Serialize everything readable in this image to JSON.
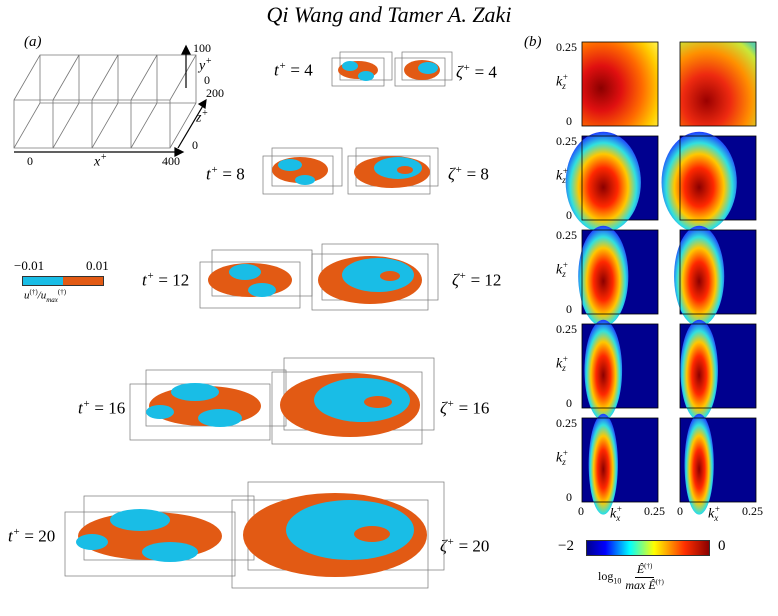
{
  "header": {
    "title": "Qi Wang and Tamer A. Zaki"
  },
  "panel_a": {
    "label": "(a)",
    "axes_box": {
      "x_tick_0": "0",
      "x_tick_400": "400",
      "y_tick_100": "100",
      "y_tick_0": "0",
      "z_tick_200": "200",
      "z_tick_0": "0",
      "x_label": "x",
      "y_label": "y",
      "z_label": "z",
      "sup": "+"
    },
    "colorbar": {
      "min": "−0.01",
      "max": "0.01",
      "neg_color": "#19bde6",
      "pos_color": "#e25a14",
      "label_main": "u",
      "label_sep": "/",
      "label_sub": "max"
    },
    "rows": [
      {
        "t": "4",
        "zeta": "4"
      },
      {
        "t": "8",
        "zeta": "8"
      },
      {
        "t": "12",
        "zeta": "12"
      },
      {
        "t": "16",
        "zeta": "16"
      },
      {
        "t": "20",
        "zeta": "20"
      }
    ],
    "t_symbol": "t",
    "zeta_symbol": "ζ",
    "sup": "+",
    "eq": " = "
  },
  "panel_b": {
    "label": "(b)",
    "ky_label": "k",
    "ky_sub": "z",
    "kx_label": "k",
    "kx_sub": "x",
    "sup": "+",
    "tick_025": "0.25",
    "tick_0": "0",
    "colorbar": {
      "min": "−2",
      "max": "0",
      "label_log": "log",
      "label_log_sub": "10",
      "label_num": "Ê",
      "label_den_max": "max Ê",
      "label_dagger": "(†)"
    }
  }
}
